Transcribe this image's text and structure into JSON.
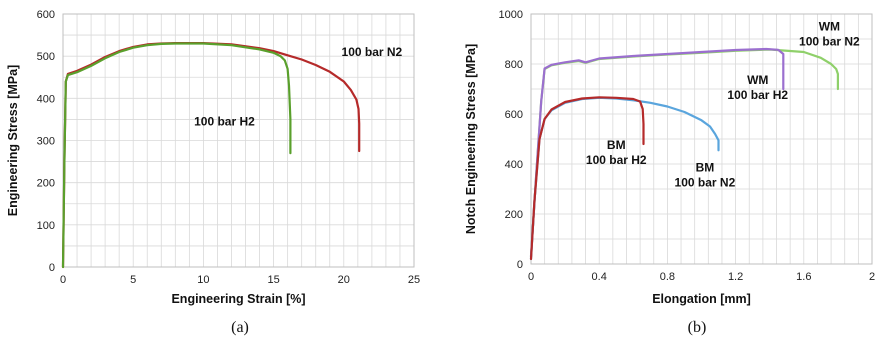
{
  "chart_data": [
    {
      "type": "line",
      "panel_label": "(a)",
      "xlabel": "Engineering Strain [%]",
      "ylabel": "Engineering Stress [MPa]",
      "xlim": [
        0,
        25
      ],
      "ylim": [
        0,
        600
      ],
      "xticks": [
        "0",
        "5",
        "10",
        "15",
        "20",
        "25"
      ],
      "yticks": [
        "0",
        "100",
        "200",
        "300",
        "400",
        "500",
        "600"
      ],
      "grid": true,
      "series": [
        {
          "name": "100 bar N2",
          "color": "#b52a2a",
          "x": [
            0,
            0.1,
            0.2,
            0.35,
            1,
            2,
            3,
            4,
            5,
            6,
            7,
            8,
            10,
            12,
            14,
            15,
            16,
            17,
            18,
            19,
            20,
            20.5,
            20.9,
            21.05,
            21.1,
            21.1
          ],
          "y": [
            0,
            250,
            440,
            458,
            465,
            480,
            498,
            512,
            522,
            528,
            530,
            531,
            531,
            528,
            519,
            512,
            502,
            492,
            479,
            463,
            440,
            420,
            397,
            375,
            340,
            275
          ]
        },
        {
          "name": "100 bar H2",
          "color": "#5aa02c",
          "x": [
            0,
            0.1,
            0.2,
            0.35,
            1,
            2,
            3,
            4,
            5,
            6,
            7,
            8,
            10,
            12,
            14,
            15,
            15.5,
            15.8,
            16,
            16.1,
            16.2,
            16.2
          ],
          "y": [
            0,
            250,
            440,
            455,
            462,
            477,
            495,
            510,
            520,
            526,
            529,
            530,
            530,
            526,
            516,
            508,
            500,
            490,
            470,
            430,
            350,
            270
          ]
        }
      ],
      "annotations": [
        {
          "text": "100 bar N2",
          "x": 22,
          "y": 500
        },
        {
          "text": "100 bar H2",
          "x": 11.5,
          "y": 335
        }
      ]
    },
    {
      "type": "line",
      "panel_label": "(b)",
      "xlabel": "Elongation [mm]",
      "ylabel": "Notch Engineering Stress [MPa]",
      "xlim": [
        0,
        2
      ],
      "ylim": [
        0,
        1000
      ],
      "xticks": [
        "0",
        "0.4",
        "0.8",
        "1.2",
        "1.6",
        "2"
      ],
      "yticks": [
        "0",
        "200",
        "400",
        "600",
        "800",
        "1000"
      ],
      "grid": true,
      "series": [
        {
          "name": "WM 100 bar N2",
          "color": "#8fd06a",
          "x": [
            0,
            0.03,
            0.06,
            0.08,
            0.12,
            0.2,
            0.28,
            0.32,
            0.4,
            0.6,
            0.8,
            1.0,
            1.2,
            1.4,
            1.6,
            1.7,
            1.76,
            1.79,
            1.8,
            1.8
          ],
          "y": [
            30,
            350,
            650,
            780,
            795,
            805,
            812,
            805,
            820,
            830,
            838,
            845,
            853,
            858,
            848,
            825,
            800,
            780,
            760,
            700
          ]
        },
        {
          "name": "WM 100 bar H2",
          "color": "#9b6fcf",
          "x": [
            0,
            0.03,
            0.06,
            0.08,
            0.12,
            0.2,
            0.28,
            0.32,
            0.4,
            0.6,
            0.8,
            1.0,
            1.2,
            1.38,
            1.45,
            1.48,
            1.48
          ],
          "y": [
            30,
            350,
            650,
            782,
            797,
            807,
            815,
            807,
            822,
            832,
            840,
            848,
            856,
            860,
            857,
            840,
            700
          ]
        },
        {
          "name": "BM 100 bar N2",
          "color": "#5aa5dd",
          "x": [
            0,
            0.02,
            0.05,
            0.08,
            0.12,
            0.2,
            0.3,
            0.4,
            0.5,
            0.6,
            0.7,
            0.8,
            0.9,
            1.0,
            1.05,
            1.08,
            1.1,
            1.1
          ],
          "y": [
            20,
            250,
            500,
            580,
            615,
            645,
            660,
            665,
            662,
            655,
            645,
            630,
            608,
            575,
            550,
            520,
            495,
            455
          ]
        },
        {
          "name": "BM 100 bar H2",
          "color": "#b52a2a",
          "x": [
            0,
            0.02,
            0.05,
            0.08,
            0.12,
            0.2,
            0.3,
            0.4,
            0.5,
            0.6,
            0.64,
            0.655,
            0.66,
            0.66
          ],
          "y": [
            20,
            250,
            500,
            580,
            618,
            648,
            662,
            667,
            665,
            660,
            650,
            620,
            560,
            480
          ]
        }
      ],
      "annotations": [
        {
          "line1": "WM",
          "line2": "100 bar N2",
          "x": 1.75,
          "y": 935
        },
        {
          "line1": "WM",
          "line2": "100 bar H2",
          "x": 1.33,
          "y": 720
        },
        {
          "line1": "BM",
          "line2": "100 bar H2",
          "x": 0.5,
          "y": 460
        },
        {
          "line1": "BM",
          "line2": "100 bar N2",
          "x": 1.02,
          "y": 370
        }
      ]
    }
  ]
}
